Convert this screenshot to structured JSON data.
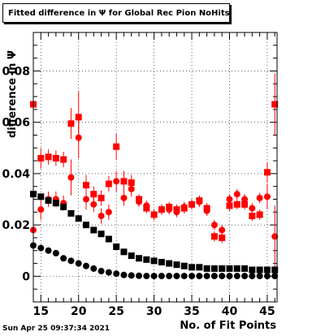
{
  "chart_data": {
    "type": "scatter",
    "title": "Fitted difference in  Ψ  for Global Rec Pion NoHits",
    "xlabel": "No. of Fit Points",
    "ylabel": "difference in  Ψ",
    "xlim": [
      14,
      46.3
    ],
    "ylim": [
      -0.01,
      0.095
    ],
    "xticks": [
      15,
      20,
      25,
      30,
      35,
      40,
      45
    ],
    "yticks": [
      0,
      0.02,
      0.04,
      0.06,
      0.08
    ],
    "ytick_labels": [
      "0",
      "0.02",
      "0.04",
      "0.06",
      "0.08"
    ],
    "grid": true,
    "series": [
      {
        "marker": "square",
        "color": "#ff0000",
        "x": [
          14,
          15,
          16,
          17,
          18,
          19,
          20,
          21,
          22,
          23,
          24,
          25,
          26,
          27,
          28,
          29,
          30,
          31,
          32,
          33,
          34,
          35,
          36,
          37,
          38,
          39,
          40,
          41,
          42,
          43,
          44,
          45,
          46
        ],
        "y": [
          0.067,
          0.046,
          0.0465,
          0.046,
          0.0455,
          0.0595,
          0.062,
          0.0355,
          0.032,
          0.0305,
          0.036,
          0.0505,
          0.037,
          0.0365,
          0.03,
          0.0265,
          0.024,
          0.026,
          0.027,
          0.026,
          0.0265,
          0.028,
          0.0295,
          0.0265,
          0.0155,
          0.015,
          0.0275,
          0.028,
          0.028,
          0.0235,
          0.024,
          0.0405,
          0.067
        ],
        "err": [
          0.022,
          0.004,
          0.003,
          0.003,
          0.003,
          0.006,
          0.01,
          0.004,
          0.003,
          0.003,
          0.003,
          0.005,
          0.004,
          0.003,
          0.002,
          0.002,
          0.002,
          0.002,
          0.002,
          0.002,
          0.002,
          0.002,
          0.002,
          0.002,
          0.002,
          0.002,
          0.002,
          0.002,
          0.002,
          0.002,
          0.002,
          0.004,
          0.012
        ]
      },
      {
        "marker": "circle",
        "color": "#ff0000",
        "x": [
          14,
          15,
          16,
          17,
          18,
          19,
          20,
          21,
          22,
          23,
          24,
          25,
          26,
          27,
          28,
          29,
          30,
          31,
          32,
          33,
          34,
          35,
          36,
          37,
          38,
          39,
          40,
          41,
          42,
          43,
          44,
          45,
          46
        ],
        "y": [
          0.018,
          0.026,
          0.03,
          0.03,
          0.0285,
          0.0385,
          0.054,
          0.03,
          0.028,
          0.0235,
          0.025,
          0.037,
          0.0305,
          0.034,
          0.029,
          0.0275,
          0.024,
          0.026,
          0.026,
          0.025,
          0.027,
          0.028,
          0.029,
          0.0255,
          0.02,
          0.018,
          0.03,
          0.032,
          0.03,
          0.0265,
          0.0305,
          0.031,
          0.0155
        ],
        "err": [
          0.015,
          0.004,
          0.003,
          0.003,
          0.003,
          0.007,
          0.008,
          0.004,
          0.003,
          0.003,
          0.003,
          0.004,
          0.003,
          0.003,
          0.002,
          0.002,
          0.002,
          0.002,
          0.002,
          0.002,
          0.002,
          0.002,
          0.002,
          0.002,
          0.002,
          0.002,
          0.002,
          0.002,
          0.002,
          0.002,
          0.002,
          0.005,
          0.012
        ]
      },
      {
        "marker": "square",
        "color": "#000000",
        "x": [
          14,
          15,
          16,
          17,
          18,
          19,
          20,
          21,
          22,
          23,
          24,
          25,
          26,
          27,
          28,
          29,
          30,
          31,
          32,
          33,
          34,
          35,
          36,
          37,
          38,
          39,
          40,
          41,
          42,
          43,
          44,
          45,
          46
        ],
        "y": [
          0.032,
          0.031,
          0.0295,
          0.0285,
          0.027,
          0.0245,
          0.0225,
          0.02,
          0.018,
          0.0165,
          0.0145,
          0.0115,
          0.0095,
          0.008,
          0.007,
          0.0065,
          0.006,
          0.0055,
          0.005,
          0.0045,
          0.004,
          0.0035,
          0.0035,
          0.003,
          0.003,
          0.003,
          0.003,
          0.003,
          0.003,
          0.0025,
          0.0025,
          0.0025,
          0.0025
        ]
      },
      {
        "marker": "circle",
        "color": "#000000",
        "x": [
          14,
          15,
          16,
          17,
          18,
          19,
          20,
          21,
          22,
          23,
          24,
          25,
          26,
          27,
          28,
          29,
          30,
          31,
          32,
          33,
          34,
          35,
          36,
          37,
          38,
          39,
          40,
          41,
          42,
          43,
          44,
          45,
          46
        ],
        "y": [
          0.012,
          0.011,
          0.01,
          0.009,
          0.007,
          0.006,
          0.005,
          0.004,
          0.003,
          0.002,
          0.0015,
          0.001,
          0.0005,
          0.0003,
          0.0002,
          0.0001,
          0.0001,
          0.0001,
          0.0001,
          0.0001,
          0.0001,
          0.0001,
          0.0001,
          0.0001,
          0.0001,
          0.0001,
          0.0001,
          0.0001,
          0.0001,
          0.0001,
          0.0001,
          0.0001,
          0.0001
        ]
      }
    ]
  },
  "footer": {
    "timestamp": "Sun Apr 25 09:37:34 2021"
  }
}
